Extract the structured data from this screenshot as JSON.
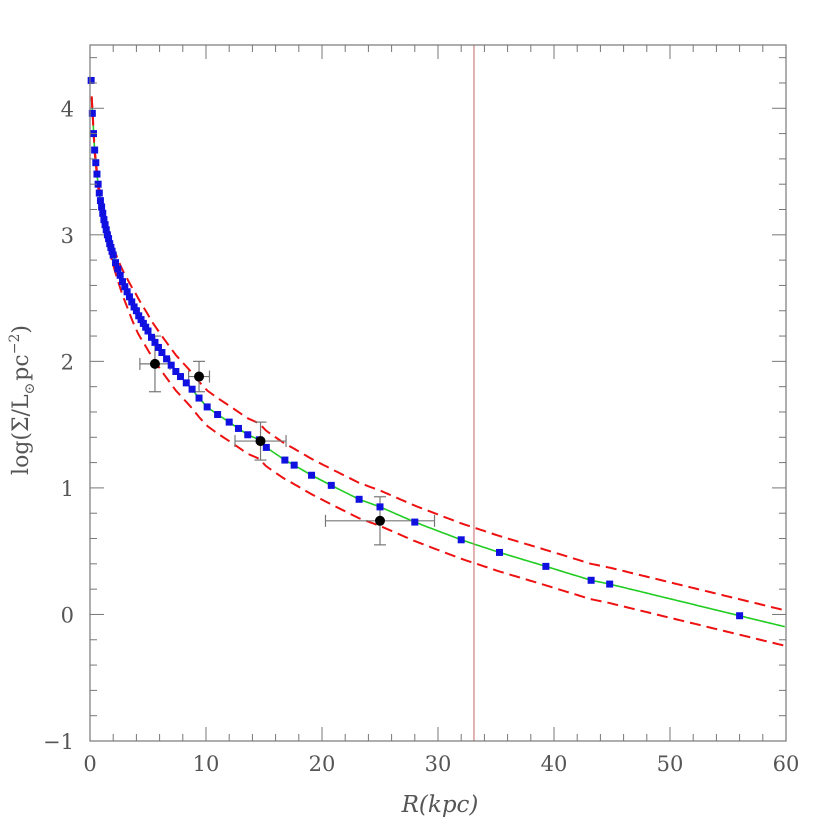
{
  "chart_data": {
    "type": "scatter",
    "title": "",
    "xlabel": "R(kpc)",
    "ylabel_parts": {
      "pre": "log(Σ/L",
      "sub": "⊙",
      "mid": "pc",
      "sup": "−2",
      "post": ")"
    },
    "xlim": [
      0,
      60
    ],
    "ylim": [
      -1,
      4.5
    ],
    "x_ticks": [
      0,
      10,
      20,
      30,
      40,
      50,
      60
    ],
    "y_ticks": [
      -1,
      0,
      1,
      2,
      3,
      4
    ],
    "grid": false,
    "vline": {
      "x": 33.1,
      "color": "#d08080"
    },
    "colors": {
      "profile": "#1010e0",
      "model": "#22cc22",
      "bounds": "#ee1111",
      "points": "#000000",
      "errorbars": "#777777"
    },
    "series": [
      {
        "kind": "squares",
        "color": "#1010e0",
        "x": [
          0.1,
          0.2,
          0.3,
          0.4,
          0.5,
          0.6,
          0.7,
          0.8,
          0.9,
          1.0,
          1.1,
          1.2,
          1.3,
          1.4,
          1.5,
          1.6,
          1.7,
          1.8,
          1.9,
          2.0,
          2.2,
          2.4,
          2.6,
          2.8,
          3.0,
          3.2,
          3.4,
          3.6,
          3.8,
          4.0,
          4.2,
          4.4,
          4.6,
          4.8,
          5.0,
          5.3,
          5.6,
          5.9,
          6.2,
          6.6,
          7.0,
          7.4,
          7.8,
          8.3,
          8.8,
          9.4,
          10.1,
          11.0,
          12.0,
          12.8,
          13.6,
          14.6,
          15.2,
          16.8,
          17.6,
          19.1,
          20.8,
          23.2,
          25.0,
          28.0,
          32.0,
          35.3,
          39.3,
          43.2,
          44.8,
          56.0
        ],
        "y": [
          4.22,
          3.96,
          3.8,
          3.67,
          3.57,
          3.48,
          3.4,
          3.33,
          3.27,
          3.22,
          3.17,
          3.12,
          3.08,
          3.04,
          3.0,
          2.97,
          2.93,
          2.9,
          2.87,
          2.84,
          2.78,
          2.73,
          2.68,
          2.63,
          2.59,
          2.55,
          2.51,
          2.47,
          2.43,
          2.4,
          2.36,
          2.33,
          2.3,
          2.27,
          2.24,
          2.19,
          2.15,
          2.11,
          2.07,
          2.02,
          1.97,
          1.92,
          1.88,
          1.83,
          1.78,
          1.71,
          1.64,
          1.58,
          1.52,
          1.47,
          1.42,
          1.38,
          1.32,
          1.22,
          1.18,
          1.1,
          1.02,
          0.91,
          0.85,
          0.73,
          0.59,
          0.49,
          0.38,
          0.27,
          0.24,
          -0.01
        ]
      },
      {
        "kind": "points_with_errors",
        "color": "#000000",
        "points": [
          {
            "x": 5.6,
            "y": 1.98,
            "xerr": 1.3,
            "yerr": 0.22
          },
          {
            "x": 9.4,
            "y": 1.88,
            "xerr": 0.9,
            "yerr": 0.12
          },
          {
            "x": 14.7,
            "y": 1.37,
            "xerr": 2.2,
            "yerr": 0.15
          },
          {
            "x": 25.0,
            "y": 0.74,
            "xerr": 4.7,
            "yerr": 0.19
          }
        ]
      }
    ],
    "curves": [
      {
        "kind": "model",
        "style": "solid",
        "color": "#22cc22"
      },
      {
        "kind": "upper",
        "style": "dashed",
        "color": "#ee1111"
      },
      {
        "kind": "lower",
        "style": "dashed",
        "color": "#ee1111"
      }
    ]
  }
}
